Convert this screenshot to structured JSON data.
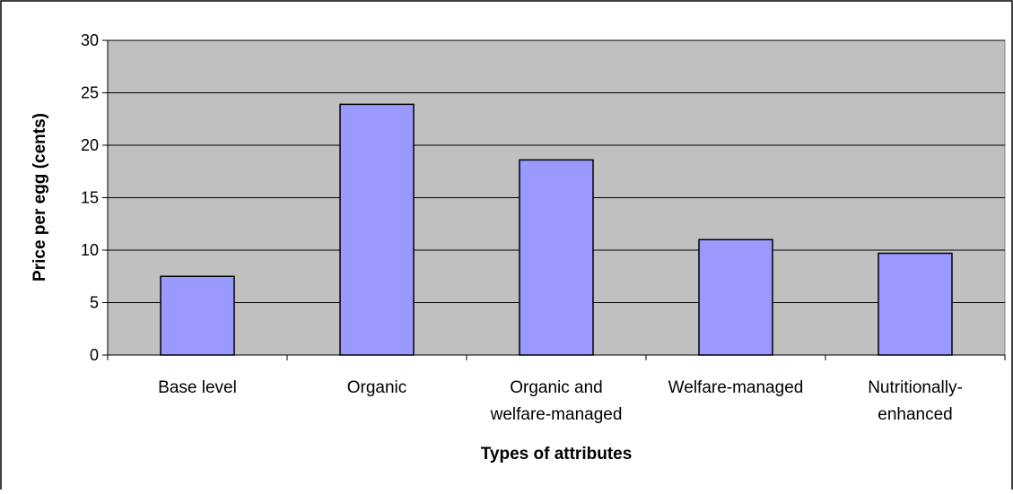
{
  "chart_data": {
    "type": "bar",
    "title": "",
    "categories": [
      [
        "Base level"
      ],
      [
        "Organic"
      ],
      [
        "Organic and",
        "welfare-managed"
      ],
      [
        "Welfare-managed"
      ],
      [
        "Nutritionally-",
        "enhanced"
      ]
    ],
    "values": [
      7.5,
      23.9,
      18.6,
      11.0,
      9.7
    ],
    "xlabel": "Types of attributes",
    "ylabel": "Price per egg (cents)",
    "ylim": [
      0,
      30
    ],
    "yticks": [
      0,
      5,
      10,
      15,
      20,
      25,
      30
    ],
    "grid": true,
    "legend": "none",
    "colors": {
      "bar_fill": "#9999ff",
      "bar_stroke": "#000000",
      "plot_background": "#c0c0c0",
      "gridline": "#000000",
      "chart_border": "#000000",
      "page_background": "#ffffff"
    }
  }
}
